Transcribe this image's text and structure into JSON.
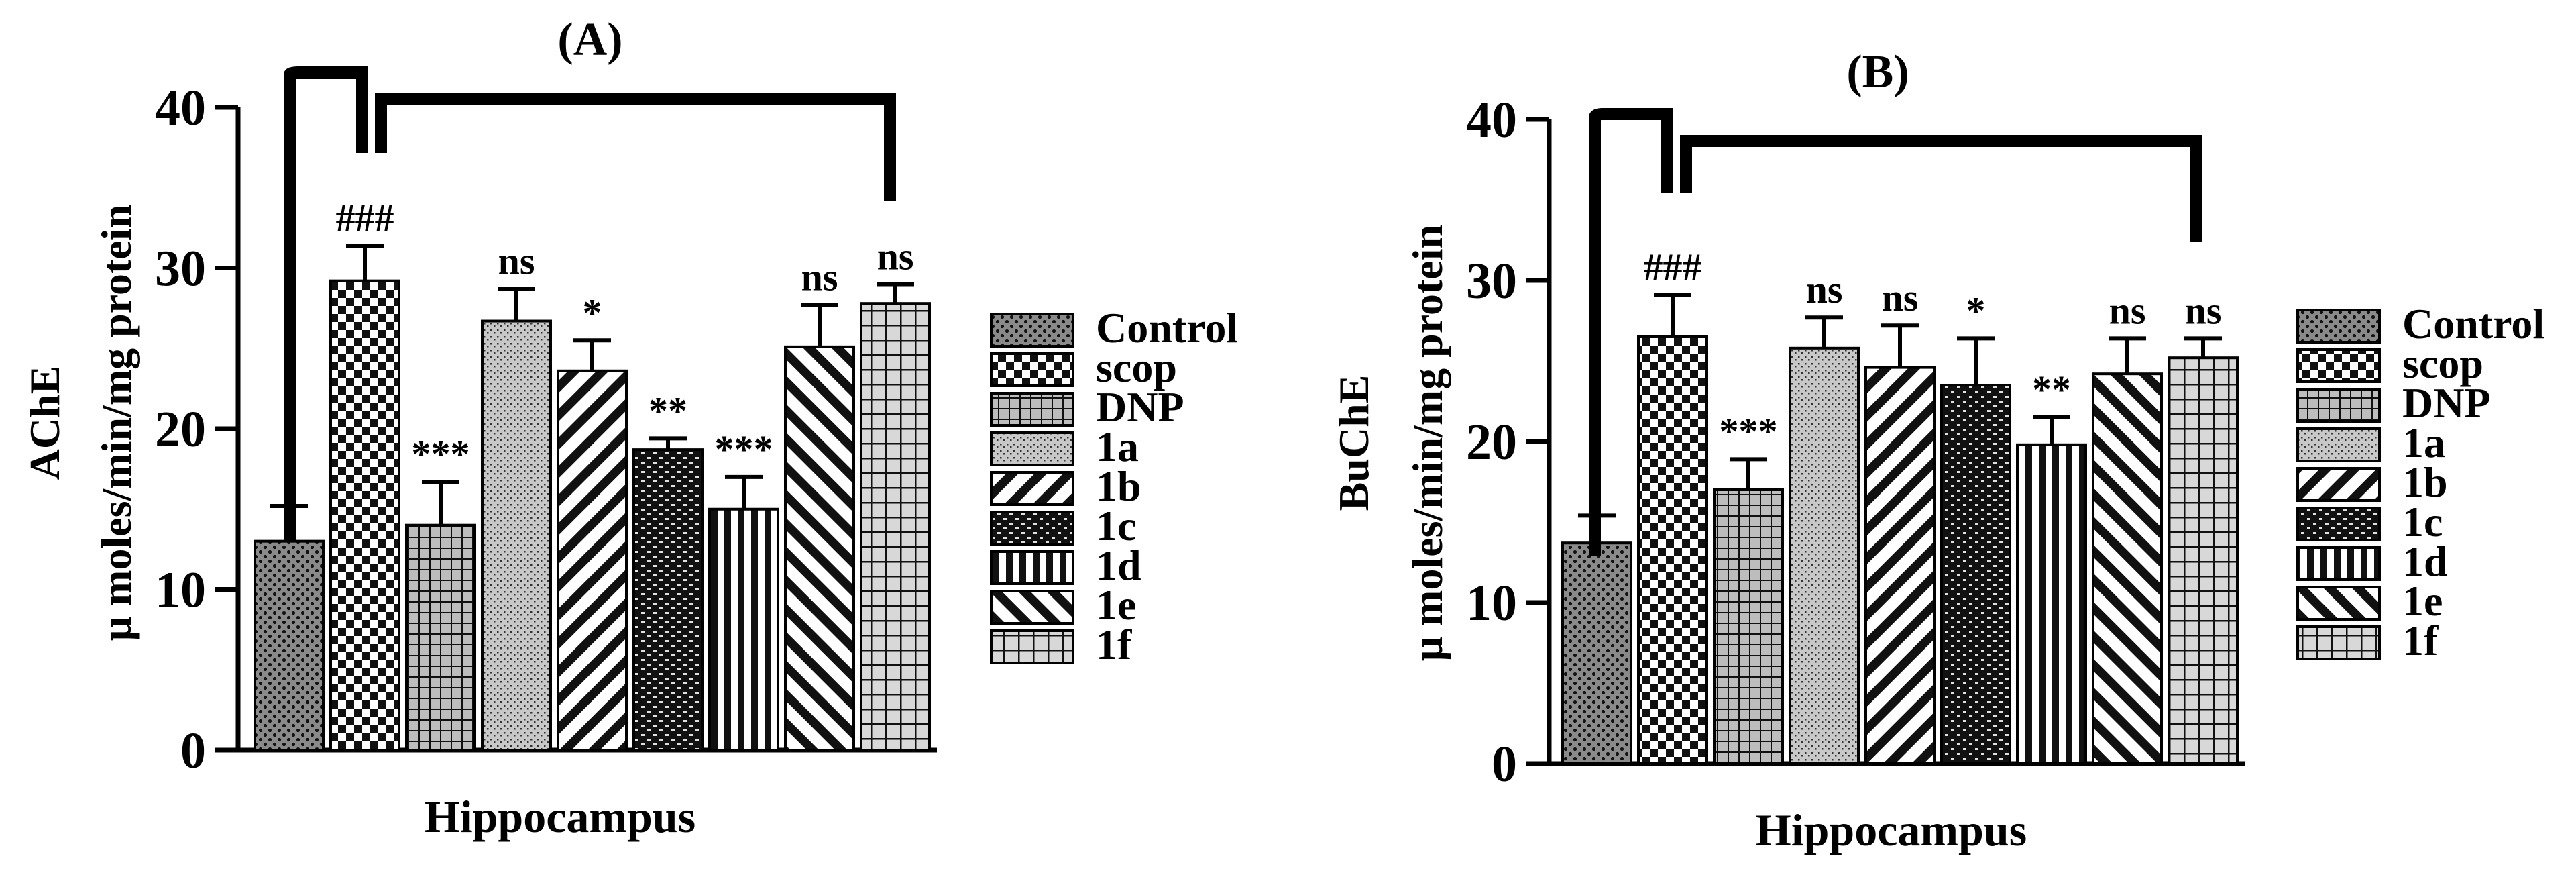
{
  "chart_data": [
    {
      "type": "bar",
      "title": "(A)",
      "xlabel": "Hippocampus",
      "ylabel_line1": "AChE",
      "ylabel_line2": "μ moles/min/mg protein",
      "ylim": [
        0,
        40
      ],
      "yticks": [
        "0",
        "10",
        "20",
        "30",
        "40"
      ],
      "categories": [
        "Control",
        "scop",
        "DNP",
        "1a",
        "1b",
        "1c",
        "1d",
        "1e",
        "1f"
      ],
      "values": [
        13.0,
        29.2,
        14.0,
        26.7,
        23.6,
        18.7,
        15.0,
        25.1,
        27.8
      ],
      "errors": [
        2.2,
        2.2,
        2.7,
        2.0,
        1.9,
        0.7,
        2.0,
        2.6,
        1.2
      ],
      "significance": [
        "",
        "###",
        "***",
        "ns",
        "*",
        "**",
        "***",
        "ns",
        "ns"
      ],
      "legend_position": "right"
    },
    {
      "type": "bar",
      "title": "(B)",
      "xlabel": "Hippocampus",
      "ylabel_line1": "BuChE",
      "ylabel_line2": "μ moles/min/mg protein",
      "ylim": [
        0,
        40
      ],
      "yticks": [
        "0",
        "10",
        "20",
        "30",
        "40"
      ],
      "categories": [
        "Control",
        "scop",
        "DNP",
        "1a",
        "1b",
        "1c",
        "1d",
        "1e",
        "1f"
      ],
      "values": [
        13.7,
        26.5,
        17.0,
        25.8,
        24.6,
        23.5,
        19.8,
        24.2,
        25.2
      ],
      "errors": [
        1.7,
        2.6,
        1.9,
        1.9,
        2.6,
        2.9,
        1.7,
        2.2,
        1.2
      ],
      "significance": [
        "",
        "###",
        "***",
        "ns",
        "ns",
        "*",
        "**",
        "ns",
        "ns"
      ],
      "legend_position": "right"
    }
  ],
  "patterns": [
    "p-dots",
    "p-checker",
    "p-grid",
    "p-speckle",
    "p-diagdown",
    "p-brick",
    "p-vert",
    "p-diagup",
    "p-grid2"
  ]
}
